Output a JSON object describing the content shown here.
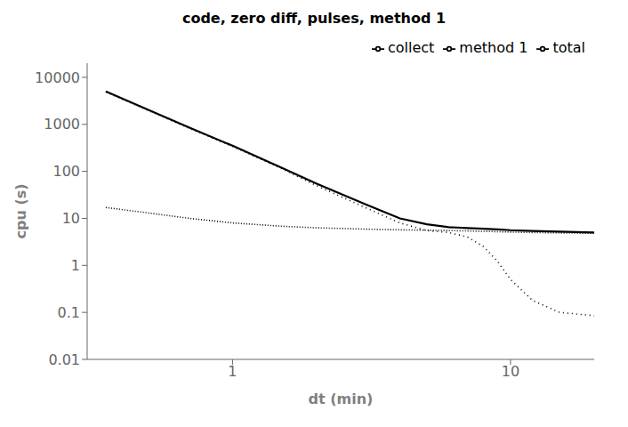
{
  "chart_data": {
    "type": "line",
    "title": "code, zero diff, pulses, method 1",
    "x_label": "dt (min)",
    "y_label": "cpu (s)",
    "x": [
      0.35,
      0.5,
      0.7,
      1.0,
      1.5,
      2.0,
      3.0,
      4.0,
      5.0,
      6.0,
      7.0,
      8.0,
      9.0,
      10.0,
      12.0,
      15.0,
      20.0
    ],
    "series": [
      {
        "name": "total",
        "color": "#000000",
        "line_style": "solid",
        "values": [
          5000,
          2000,
          850,
          350,
          120,
          55,
          20,
          10,
          7.5,
          6.5,
          6.2,
          6.0,
          5.8,
          5.6,
          5.4,
          5.2,
          5.0
        ]
      },
      {
        "name": "collect",
        "color": "#000000",
        "line_style": "densely_dotted",
        "values": [
          17,
          13,
          10,
          8.0,
          6.8,
          6.3,
          5.9,
          5.7,
          5.6,
          5.5,
          5.4,
          5.3,
          5.2,
          5.1,
          5.0,
          4.9,
          4.8
        ]
      },
      {
        "name": "method 1",
        "color": "#000000",
        "line_style": "dotted",
        "values": [
          4900,
          1950,
          820,
          340,
          115,
          50,
          17,
          8,
          5.5,
          5.0,
          4.0,
          2.5,
          1.2,
          0.5,
          0.18,
          0.1,
          0.085
        ]
      }
    ],
    "xlim": [
      0.3,
      20
    ],
    "ylim": [
      0.01,
      20000
    ],
    "xticks": [
      1,
      10
    ],
    "yticks": [
      0.01,
      0.1,
      1,
      10,
      100,
      1000,
      10000
    ],
    "log": true,
    "grid": false,
    "legend": "upper right"
  }
}
